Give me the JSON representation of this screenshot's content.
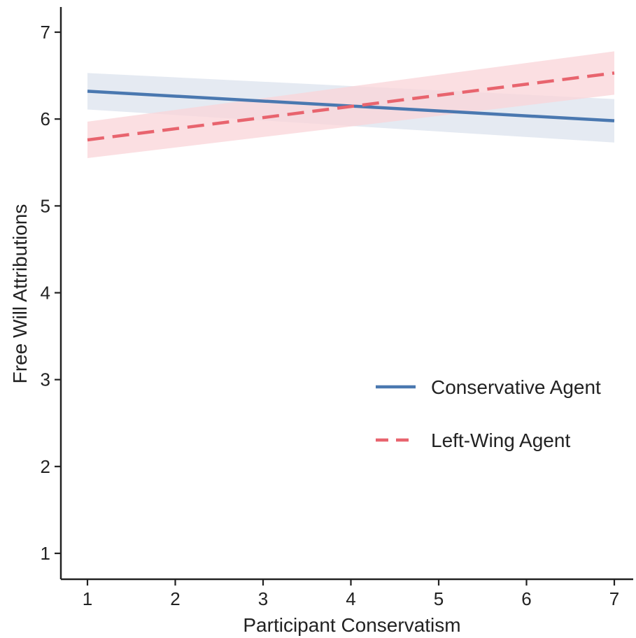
{
  "chart_data": {
    "type": "line",
    "xlabel": "Participant Conservatism",
    "ylabel": "Free Will Attributions",
    "xlim": [
      0.7,
      7.25
    ],
    "ylim": [
      0.7,
      7.3
    ],
    "x_ticks": [
      1,
      2,
      3,
      4,
      5,
      6,
      7
    ],
    "y_ticks": [
      1,
      2,
      3,
      4,
      5,
      6,
      7
    ],
    "grid": false,
    "legend_position": "lower-right",
    "series": [
      {
        "name": "Conservative Agent",
        "color": "#4a78b0",
        "band_color": "#dce3ee",
        "line_style": "solid",
        "x": [
          1,
          7
        ],
        "y": [
          6.32,
          5.98
        ],
        "ci_lower": [
          6.11,
          5.73
        ],
        "ci_upper": [
          6.53,
          6.23
        ]
      },
      {
        "name": "Left-Wing Agent",
        "color": "#e8646e",
        "band_color": "#f9d4d8",
        "line_style": "dashed",
        "x": [
          1,
          7
        ],
        "y": [
          5.76,
          6.53
        ],
        "ci_lower": [
          5.55,
          6.28
        ],
        "ci_upper": [
          5.97,
          6.78
        ]
      }
    ]
  }
}
